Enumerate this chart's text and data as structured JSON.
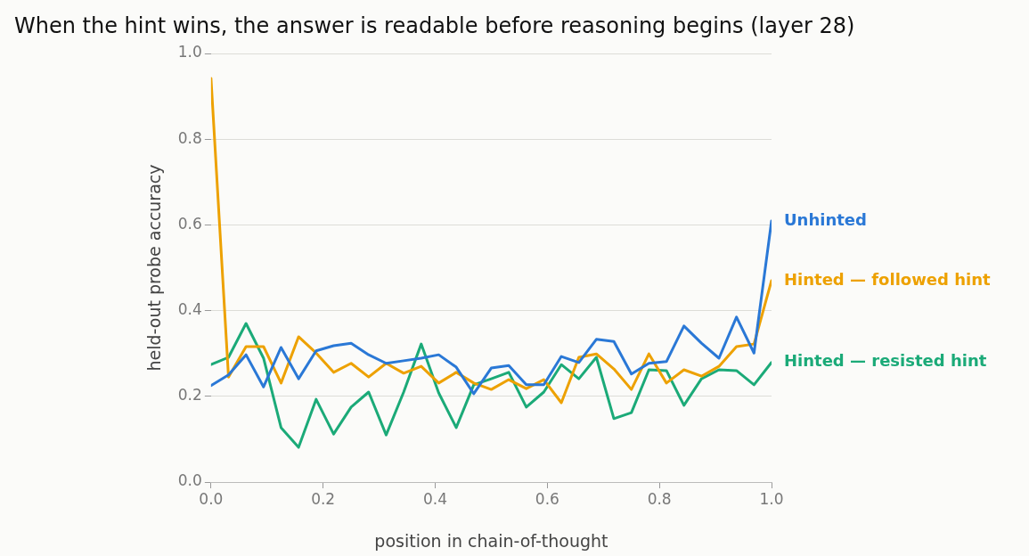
{
  "chart_data": {
    "type": "line",
    "title": "When the hint wins, the answer is readable before reasoning begins (layer 28)",
    "xlabel": "position in chain-of-thought",
    "ylabel": "held-out probe accuracy",
    "x": [
      0,
      0.03125,
      0.0625,
      0.09375,
      0.125,
      0.15625,
      0.1875,
      0.21875,
      0.25,
      0.28125,
      0.3125,
      0.34375,
      0.375,
      0.40625,
      0.4375,
      0.46875,
      0.5,
      0.53125,
      0.5625,
      0.59375,
      0.625,
      0.65625,
      0.6875,
      0.71875,
      0.75,
      0.78125,
      0.8125,
      0.84375,
      0.875,
      0.90625,
      0.9375,
      0.96875,
      1
    ],
    "series": [
      {
        "name": "Unhinted",
        "color": "#2a78d6",
        "values": [
          0.225,
          0.25,
          0.297,
          0.222,
          0.314,
          0.241,
          0.306,
          0.318,
          0.324,
          0.297,
          0.277,
          0.283,
          0.289,
          0.297,
          0.268,
          0.206,
          0.266,
          0.272,
          0.227,
          0.227,
          0.293,
          0.279,
          0.333,
          0.328,
          0.252,
          0.277,
          0.281,
          0.364,
          0.324,
          0.289,
          0.385,
          0.301,
          0.609
        ]
      },
      {
        "name": "Hinted — followed hint",
        "color": "#eda100",
        "values": [
          0.942,
          0.245,
          0.316,
          0.316,
          0.231,
          0.339,
          0.301,
          0.256,
          0.277,
          0.245,
          0.277,
          0.254,
          0.27,
          0.231,
          0.256,
          0.231,
          0.216,
          0.239,
          0.218,
          0.239,
          0.185,
          0.291,
          0.299,
          0.264,
          0.216,
          0.299,
          0.231,
          0.262,
          0.247,
          0.27,
          0.316,
          0.322,
          0.47
        ]
      },
      {
        "name": "Hinted — resisted hint",
        "color": "#1baa78",
        "values": [
          0.274,
          0.291,
          0.37,
          0.289,
          0.127,
          0.081,
          0.193,
          0.112,
          0.175,
          0.21,
          0.11,
          0.21,
          0.322,
          0.208,
          0.127,
          0.227,
          0.241,
          0.256,
          0.175,
          0.21,
          0.274,
          0.241,
          0.291,
          0.148,
          0.162,
          0.262,
          0.26,
          0.179,
          0.241,
          0.262,
          0.26,
          0.227,
          0.279
        ]
      }
    ],
    "xlim": [
      0,
      1
    ],
    "xticks": [
      {
        "value": 0,
        "label": "0.0"
      },
      {
        "value": 0.2,
        "label": "0.2"
      },
      {
        "value": 0.4,
        "label": "0.4"
      },
      {
        "value": 0.6,
        "label": "0.6"
      },
      {
        "value": 0.8,
        "label": "0.8"
      },
      {
        "value": 1,
        "label": "1.0"
      }
    ],
    "ylim": [
      0,
      1
    ],
    "yticks": [
      {
        "value": 0,
        "label": "0.0"
      },
      {
        "value": 0.2,
        "label": "0.2"
      },
      {
        "value": 0.4,
        "label": "0.4"
      },
      {
        "value": 0.6,
        "label": "0.6"
      },
      {
        "value": 0.8,
        "label": "0.8"
      },
      {
        "value": 1,
        "label": "1.0"
      }
    ],
    "grid": "y",
    "legend": false,
    "marker": "none",
    "line_style": "solid"
  }
}
